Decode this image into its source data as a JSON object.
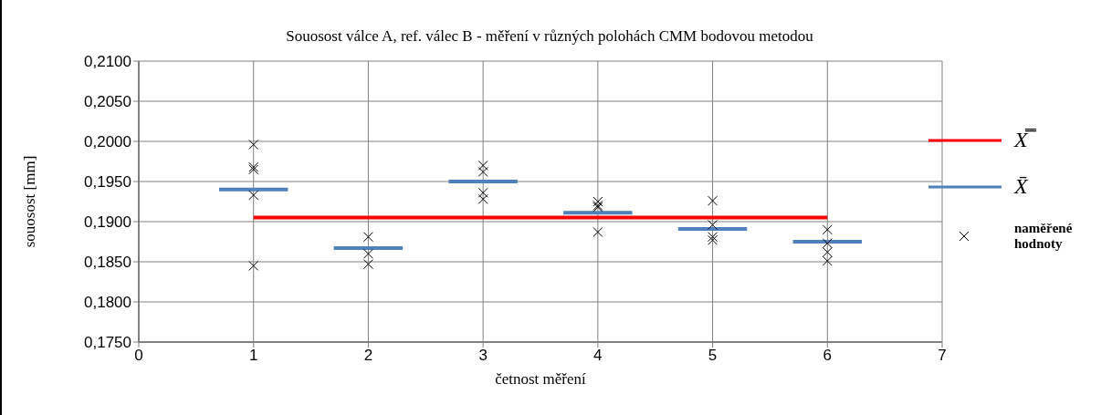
{
  "chart_data": {
    "type": "scatter",
    "title": "Souosost válce A, ref. válec B - měření v různých polohách CMM bodovou metodou",
    "xlabel": "četnost měření",
    "ylabel": "souosost [mm]",
    "xlim": [
      0,
      7
    ],
    "xticks": [
      0,
      1,
      2,
      3,
      4,
      5,
      6,
      7
    ],
    "ylim": [
      0.175,
      0.21
    ],
    "yticks": [
      {
        "value": 0.175,
        "label": "0,1750"
      },
      {
        "value": 0.18,
        "label": "0,1800"
      },
      {
        "value": 0.185,
        "label": "0,1850"
      },
      {
        "value": 0.19,
        "label": "0,1900"
      },
      {
        "value": 0.195,
        "label": "0,1950"
      },
      {
        "value": 0.2,
        "label": "0,2000"
      },
      {
        "value": 0.205,
        "label": "0,2050"
      },
      {
        "value": 0.21,
        "label": "0,2100"
      }
    ],
    "grid": true,
    "legend": "right",
    "series": [
      {
        "name": "X̿",
        "type": "line",
        "color": "#ff0000",
        "marker": "none",
        "x": [
          1,
          6
        ],
        "values": [
          0.1905,
          0.1905
        ]
      },
      {
        "name": "X̄",
        "type": "line",
        "color": "#4f81bd",
        "marker": "none",
        "x": [
          0.7,
          1.3,
          1.5,
          1.7,
          2.3,
          2.5,
          2.7,
          3.3,
          3.5,
          3.7,
          4.3,
          4.5,
          4.7,
          5.3,
          5.5,
          5.7,
          6.3
        ],
        "values": [
          0.194,
          0.194,
          null,
          0.1867,
          0.1867,
          null,
          0.195,
          0.195,
          null,
          0.1911,
          0.1911,
          null,
          0.1891,
          0.1891,
          null,
          0.1875,
          0.1875
        ]
      },
      {
        "name": "naměřené hodnoty",
        "color": "#000000",
        "marker": "cross",
        "x": [
          1,
          1,
          1,
          1,
          1,
          2,
          2,
          2,
          3,
          3,
          3,
          3,
          4,
          4,
          4,
          4,
          5,
          5,
          5,
          5,
          6,
          6,
          6,
          6
        ],
        "values": [
          0.1996,
          0.1968,
          0.1965,
          0.1933,
          0.1845,
          0.1881,
          0.186,
          0.1847,
          0.197,
          0.1962,
          0.1936,
          0.1928,
          0.1925,
          0.192,
          0.1918,
          0.1887,
          0.1926,
          0.1896,
          0.1881,
          0.1877,
          0.189,
          0.1873,
          0.1862,
          0.1851
        ]
      }
    ]
  }
}
